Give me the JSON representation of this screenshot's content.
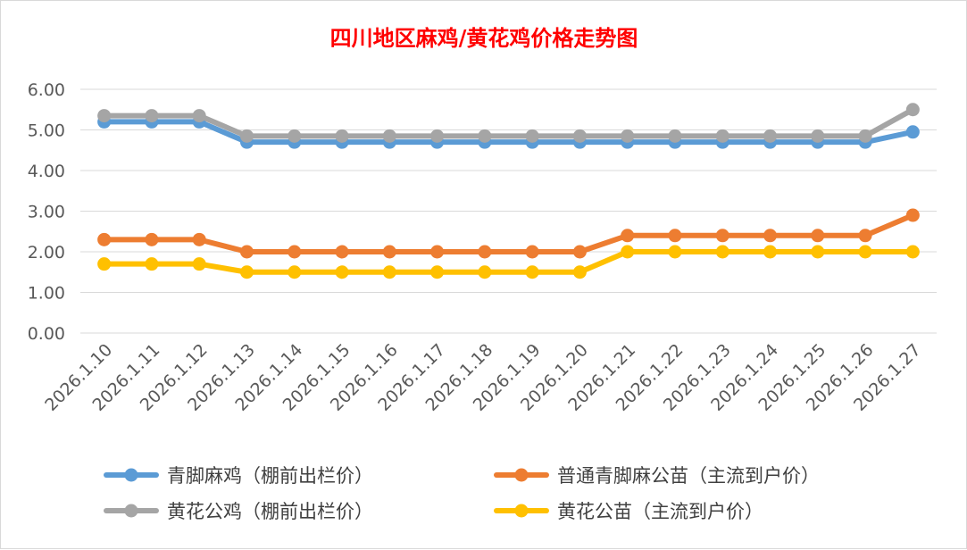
{
  "chart_data": {
    "type": "line",
    "title": "四川地区麻鸡/黄花鸡价格走势图",
    "title_color": "#ff0000",
    "categories": [
      "2026.1.10",
      "2026.1.11",
      "2026.1.12",
      "2026.1.13",
      "2026.1.14",
      "2026.1.15",
      "2026.1.16",
      "2026.1.17",
      "2026.1.18",
      "2026.1.19",
      "2026.1.20",
      "2026.1.21",
      "2026.1.22",
      "2026.1.23",
      "2026.1.24",
      "2026.1.25",
      "2026.1.26",
      "2026.1.27"
    ],
    "y_ticks": [
      "0.00",
      "1.00",
      "2.00",
      "3.00",
      "4.00",
      "5.00",
      "6.00"
    ],
    "ylim": [
      0,
      6
    ],
    "grid": true,
    "legend_position": "bottom",
    "series": [
      {
        "name": "青脚麻鸡（棚前出栏价）",
        "color": "#5b9bd5",
        "values": [
          5.2,
          5.2,
          5.2,
          4.7,
          4.7,
          4.7,
          4.7,
          4.7,
          4.7,
          4.7,
          4.7,
          4.7,
          4.7,
          4.7,
          4.7,
          4.7,
          4.7,
          4.95
        ]
      },
      {
        "name": "普通青脚麻公苗（主流到户价）",
        "color": "#ed7d31",
        "values": [
          2.3,
          2.3,
          2.3,
          2.0,
          2.0,
          2.0,
          2.0,
          2.0,
          2.0,
          2.0,
          2.0,
          2.4,
          2.4,
          2.4,
          2.4,
          2.4,
          2.4,
          2.9
        ]
      },
      {
        "name": "黄花公鸡（棚前出栏价）",
        "color": "#a5a5a5",
        "values": [
          5.35,
          5.35,
          5.35,
          4.85,
          4.85,
          4.85,
          4.85,
          4.85,
          4.85,
          4.85,
          4.85,
          4.85,
          4.85,
          4.85,
          4.85,
          4.85,
          4.85,
          5.5
        ]
      },
      {
        "name": "黄花公苗（主流到户价）",
        "color": "#ffc000",
        "values": [
          1.7,
          1.7,
          1.7,
          1.5,
          1.5,
          1.5,
          1.5,
          1.5,
          1.5,
          1.5,
          1.5,
          2.0,
          2.0,
          2.0,
          2.0,
          2.0,
          2.0,
          2.0
        ]
      }
    ]
  }
}
